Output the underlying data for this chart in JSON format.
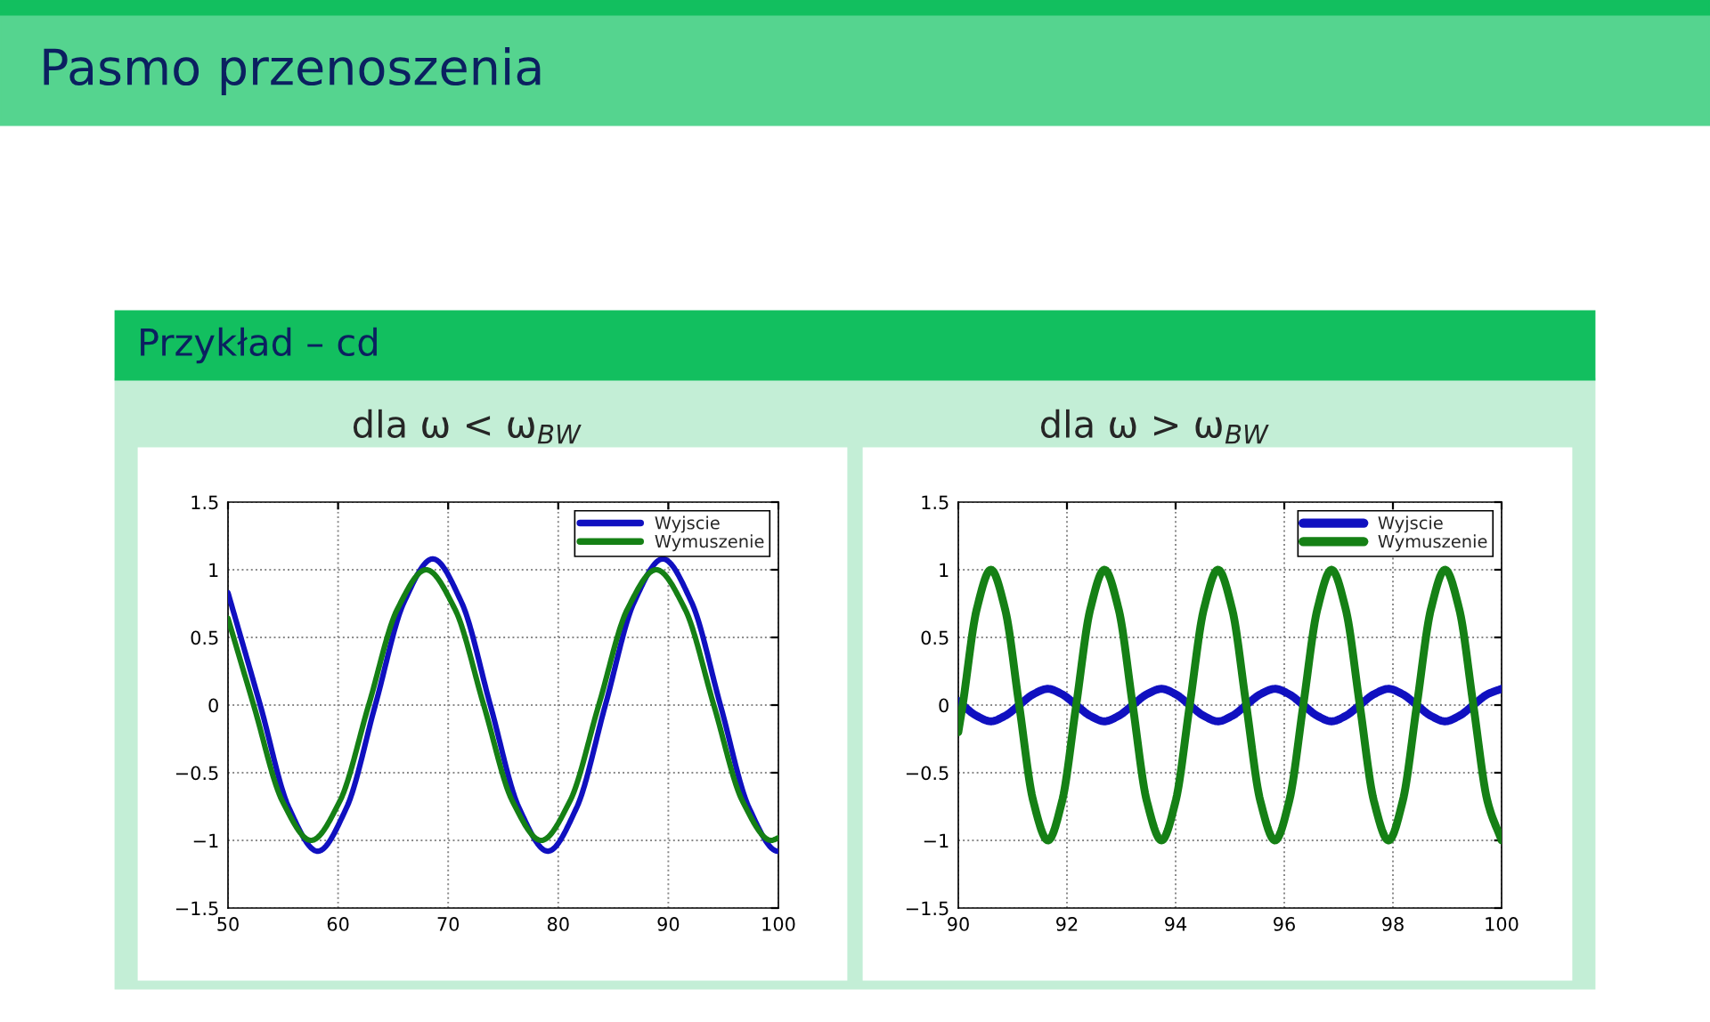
{
  "chart_data": [
    {
      "type": "line",
      "title": "dla ω < ω$_{BW}$",
      "annotations": [
        "Pasmo przenoszenia",
        "Przykład – cd"
      ],
      "xlim": [
        50,
        100
      ],
      "xticks": [
        50,
        60,
        70,
        80,
        90,
        100
      ],
      "ylim": [
        -1.5,
        1.5
      ],
      "yticks": [
        {
          "value": -1.5,
          "label": "−1.5"
        },
        {
          "value": -1,
          "label": "−1"
        },
        {
          "value": -0.5,
          "label": "−0.5"
        },
        0,
        0.5,
        1,
        1.5
      ],
      "grid": true,
      "legend": "top right",
      "series": [
        {
          "name": "Wyjscie",
          "color": "#1010c0",
          "x": [
            50,
            52.93,
            55.54,
            58.15,
            60.76,
            63.38,
            65.99,
            68.6,
            71.21,
            73.83,
            76.44,
            79.05,
            81.66,
            84.28,
            86.89,
            89.5,
            92.11,
            94.73,
            97.34,
            99.95,
            100
          ],
          "values": [
            0.83,
            0,
            -0.76,
            -1.08,
            -0.76,
            0,
            0.76,
            1.08,
            0.76,
            0,
            -0.76,
            -1.08,
            -0.76,
            0,
            0.76,
            1.08,
            0.76,
            0,
            -0.76,
            -1.08,
            -1.08
          ]
        },
        {
          "name": "Wymuszenie",
          "color": "#158015",
          "x": [
            50,
            52.33,
            54.94,
            57.55,
            60.16,
            62.78,
            65.39,
            68,
            70.61,
            73.23,
            75.84,
            78.45,
            81.06,
            83.68,
            86.29,
            88.9,
            91.51,
            94.13,
            96.74,
            99.35,
            100
          ],
          "values": [
            0.64,
            0,
            -0.71,
            -1,
            -0.71,
            0,
            0.71,
            1,
            0.71,
            0,
            -0.71,
            -1,
            -0.71,
            0,
            0.71,
            1,
            0.71,
            0,
            -0.71,
            -1,
            -0.98
          ]
        }
      ]
    },
    {
      "type": "line",
      "title": "dla ω > ω$_{BW}$",
      "xlim": [
        90,
        100
      ],
      "xticks": [
        90,
        92,
        94,
        96,
        98,
        100
      ],
      "ylim": [
        -1.5,
        1.5
      ],
      "yticks": [
        {
          "value": -1.5,
          "label": "−1.5"
        },
        {
          "value": -1,
          "label": "−1"
        },
        {
          "value": -0.5,
          "label": "−0.5"
        },
        0,
        0.5,
        1,
        1.5
      ],
      "grid": true,
      "legend": "top right",
      "series": [
        {
          "name": "Wyjscie",
          "color": "#1010c0",
          "x": [
            90,
            90.08,
            90.34,
            90.6,
            90.86,
            91.12,
            91.38,
            91.65,
            91.91,
            92.17,
            92.43,
            92.69,
            92.95,
            93.21,
            93.47,
            93.74,
            94.0,
            94.26,
            94.52,
            94.78,
            95.04,
            95.3,
            95.56,
            95.83,
            96.09,
            96.35,
            96.61,
            96.87,
            97.13,
            97.39,
            97.65,
            97.92,
            98.18,
            98.44,
            98.7,
            98.96,
            99.22,
            99.48,
            99.74,
            100
          ],
          "values": [
            0.03,
            0,
            -0.08,
            -0.12,
            -0.08,
            0,
            0.08,
            0.12,
            0.08,
            0,
            -0.08,
            -0.12,
            -0.08,
            0,
            0.08,
            0.12,
            0.08,
            0,
            -0.08,
            -0.12,
            -0.08,
            0,
            0.08,
            0.12,
            0.08,
            0,
            -0.08,
            -0.12,
            -0.08,
            0,
            0.08,
            0.12,
            0.08,
            0,
            -0.08,
            -0.12,
            -0.08,
            0,
            0.08,
            0.12
          ]
        },
        {
          "name": "Wymuszenie",
          "color": "#158015",
          "x": [
            90,
            90.08,
            90.34,
            90.6,
            90.86,
            91.12,
            91.38,
            91.65,
            91.91,
            92.17,
            92.43,
            92.69,
            92.95,
            93.21,
            93.47,
            93.74,
            94.0,
            94.26,
            94.52,
            94.78,
            95.04,
            95.3,
            95.56,
            95.83,
            96.09,
            96.35,
            96.61,
            96.87,
            97.13,
            97.39,
            97.65,
            97.92,
            98.18,
            98.44,
            98.7,
            98.96,
            99.22,
            99.48,
            99.74,
            100
          ],
          "values": [
            -0.2,
            0,
            0.71,
            1,
            0.71,
            0,
            -0.71,
            -1,
            -0.71,
            0,
            0.71,
            1,
            0.71,
            0,
            -0.71,
            -1,
            -0.71,
            0,
            0.71,
            1,
            0.71,
            0,
            -0.71,
            -1,
            -0.71,
            0,
            0.71,
            1,
            0.71,
            0,
            -0.71,
            -1,
            -0.71,
            0,
            0.71,
            1,
            0.71,
            0,
            -0.71,
            -1
          ]
        }
      ]
    }
  ]
}
